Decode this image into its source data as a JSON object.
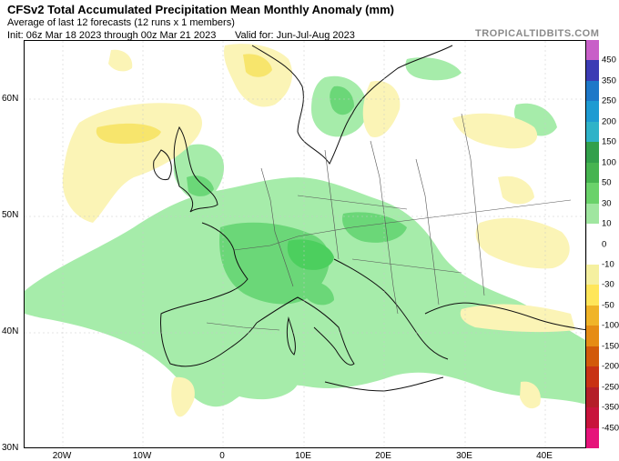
{
  "header": {
    "title": "CFSv2 Total Accumulated Precipitation Mean Monthly Anomaly (mm)",
    "subtitle": "Average of last 12 forecasts (12 runs x 1 members)",
    "init": "Init: 06z Mar 18 2023 through 00z Mar 21 2023",
    "valid": "Valid for: Jun-Jul-Aug 2023",
    "site": "TROPICALTIDBITS.COM"
  },
  "axes": {
    "lat_labels": [
      "60N",
      "50N",
      "40N",
      "30N"
    ],
    "lon_labels": [
      "20W",
      "10W",
      "0",
      "10E",
      "20E",
      "30E",
      "40E"
    ]
  },
  "colorbar": {
    "labels": [
      "450",
      "350",
      "250",
      "200",
      "150",
      "100",
      "50",
      "30",
      "10",
      "0",
      "-10",
      "-30",
      "-50",
      "-100",
      "-150",
      "-200",
      "-250",
      "-350",
      "-450"
    ],
    "colors": [
      "#c85fc8",
      "#3c3cb4",
      "#1e78c8",
      "#1e9bd2",
      "#2fb3c8",
      "#32a04b",
      "#46b450",
      "#6ad26a",
      "#a0e6a0",
      "#ffffff",
      "#ffffff",
      "#f5f0a0",
      "#ffe65a",
      "#f0b428",
      "#e68c14",
      "#d25a0a",
      "#c83214",
      "#b41e28",
      "#c8143c",
      "#e6147a"
    ]
  },
  "map": {
    "description_colors": {
      "land": "#ffffff",
      "wet_light": "#a6ecaa",
      "wet_mid": "#6bd778",
      "dry_light": "#fbf4b6",
      "dry_mid": "#f7e56c",
      "border": "#555555",
      "coast": "#111111"
    }
  }
}
